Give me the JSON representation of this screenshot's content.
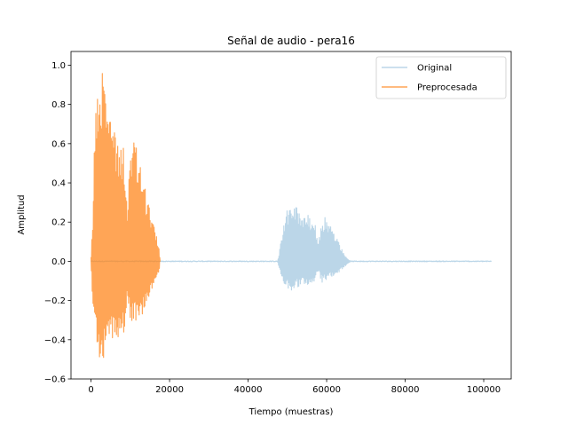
{
  "chart_data": {
    "type": "line",
    "title": "Señal de audio - pera16",
    "xlabel": "Tiempo (muestras)",
    "ylabel": "Amplitud",
    "xlim": [
      -5100,
      107000
    ],
    "ylim": [
      -0.6,
      1.07
    ],
    "xticks": [
      0,
      20000,
      40000,
      60000,
      80000,
      100000
    ],
    "xtick_labels": [
      "0",
      "20000",
      "40000",
      "60000",
      "80000",
      "100000"
    ],
    "yticks": [
      -0.6,
      -0.4,
      -0.2,
      0.0,
      0.2,
      0.4,
      0.6,
      0.8,
      1.0
    ],
    "ytick_labels": [
      "−0.6",
      "−0.4",
      "−0.2",
      "0.0",
      "0.2",
      "0.4",
      "0.6",
      "0.8",
      "1.0"
    ],
    "grid": false,
    "legend_position": "top-right",
    "series": [
      {
        "name": "Original",
        "color": "#1f77b4",
        "opacity": 0.3,
        "n_samples": 102000,
        "envelope": [
          {
            "x": 0,
            "top": 0.0,
            "bottom": 0.0
          },
          {
            "x": 47500,
            "top": 0.0,
            "bottom": 0.0
          },
          {
            "x": 48000,
            "top": 0.05,
            "bottom": -0.05
          },
          {
            "x": 49000,
            "top": 0.2,
            "bottom": -0.12
          },
          {
            "x": 50000,
            "top": 0.28,
            "bottom": -0.14
          },
          {
            "x": 51000,
            "top": 0.3,
            "bottom": -0.15
          },
          {
            "x": 53000,
            "top": 0.27,
            "bottom": -0.13
          },
          {
            "x": 55000,
            "top": 0.24,
            "bottom": -0.12
          },
          {
            "x": 57000,
            "top": 0.2,
            "bottom": -0.1
          },
          {
            "x": 57800,
            "top": 0.08,
            "bottom": -0.05
          },
          {
            "x": 58800,
            "top": 0.21,
            "bottom": -0.11
          },
          {
            "x": 59500,
            "top": 0.23,
            "bottom": -0.1
          },
          {
            "x": 61000,
            "top": 0.19,
            "bottom": -0.08
          },
          {
            "x": 63000,
            "top": 0.1,
            "bottom": -0.06
          },
          {
            "x": 65000,
            "top": 0.02,
            "bottom": -0.02
          },
          {
            "x": 66000,
            "top": 0.0,
            "bottom": 0.0
          },
          {
            "x": 102000,
            "top": 0.0,
            "bottom": 0.0
          }
        ]
      },
      {
        "name": "Preprocesada",
        "color": "#ff7f0e",
        "opacity": 0.7,
        "n_samples": 17600,
        "envelope": [
          {
            "x": 0,
            "top": 0.03,
            "bottom": -0.03
          },
          {
            "x": 500,
            "top": 0.25,
            "bottom": -0.25
          },
          {
            "x": 1000,
            "top": 0.75,
            "bottom": -0.38
          },
          {
            "x": 1800,
            "top": 0.93,
            "bottom": -0.45
          },
          {
            "x": 2500,
            "top": 1.0,
            "bottom": -0.53
          },
          {
            "x": 3500,
            "top": 0.93,
            "bottom": -0.48
          },
          {
            "x": 4500,
            "top": 0.88,
            "bottom": -0.45
          },
          {
            "x": 5500,
            "top": 0.75,
            "bottom": -0.42
          },
          {
            "x": 6500,
            "top": 0.67,
            "bottom": -0.38
          },
          {
            "x": 7500,
            "top": 0.62,
            "bottom": -0.4
          },
          {
            "x": 8500,
            "top": 0.6,
            "bottom": -0.38
          },
          {
            "x": 9200,
            "top": 0.25,
            "bottom": -0.18
          },
          {
            "x": 10000,
            "top": 0.62,
            "bottom": -0.3
          },
          {
            "x": 11000,
            "top": 0.63,
            "bottom": -0.32
          },
          {
            "x": 12000,
            "top": 0.55,
            "bottom": -0.3
          },
          {
            "x": 13000,
            "top": 0.45,
            "bottom": -0.28
          },
          {
            "x": 14500,
            "top": 0.3,
            "bottom": -0.2
          },
          {
            "x": 16000,
            "top": 0.18,
            "bottom": -0.12
          },
          {
            "x": 17300,
            "top": 0.08,
            "bottom": -0.05
          },
          {
            "x": 17600,
            "top": 0.0,
            "bottom": 0.0
          }
        ]
      }
    ]
  }
}
